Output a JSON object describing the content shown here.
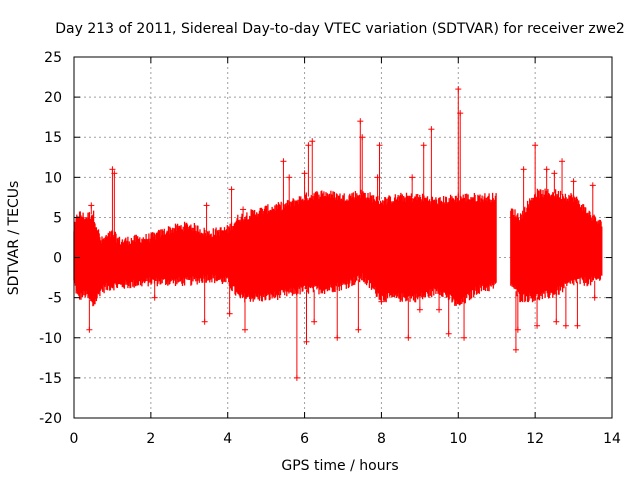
{
  "chart_data": {
    "type": "scatter",
    "title": "Day 213 of 2011, Sidereal Day-to-day VTEC variation (SDTVAR) for receiver zwe2",
    "xlabel": "GPS time / hours",
    "ylabel": "SDTVAR / TECUs",
    "xlim": [
      0,
      14
    ],
    "ylim": [
      -20,
      25
    ],
    "x_ticks": [
      0,
      2,
      4,
      6,
      8,
      10,
      12,
      14
    ],
    "y_ticks": [
      -20,
      -15,
      -10,
      -5,
      0,
      5,
      10,
      15,
      20,
      25
    ],
    "grid": true,
    "series": [
      {
        "name": "SDTVAR",
        "color": "#ff0000",
        "marker": "plus",
        "envelope": [
          {
            "x": 0.0,
            "low": -3.0,
            "high": 3.5
          },
          {
            "x": 0.1,
            "low": -5.0,
            "high": 5.5
          },
          {
            "x": 0.3,
            "low": -4.5,
            "high": 5.0
          },
          {
            "x": 0.5,
            "low": -6.0,
            "high": 5.5
          },
          {
            "x": 0.7,
            "low": -4.0,
            "high": 2.0
          },
          {
            "x": 1.0,
            "low": -3.5,
            "high": 3.0
          },
          {
            "x": 1.2,
            "low": -3.5,
            "high": 2.0
          },
          {
            "x": 2.0,
            "low": -3.0,
            "high": 2.5
          },
          {
            "x": 2.5,
            "low": -3.0,
            "high": 3.5
          },
          {
            "x": 3.0,
            "low": -3.0,
            "high": 4.0
          },
          {
            "x": 3.5,
            "low": -2.5,
            "high": 3.0
          },
          {
            "x": 4.0,
            "low": -3.0,
            "high": 3.5
          },
          {
            "x": 4.3,
            "low": -5.0,
            "high": 5.0
          },
          {
            "x": 5.0,
            "low": -5.0,
            "high": 6.0
          },
          {
            "x": 5.5,
            "low": -4.5,
            "high": 6.5
          },
          {
            "x": 6.0,
            "low": -4.0,
            "high": 7.5
          },
          {
            "x": 6.5,
            "low": -4.0,
            "high": 8.0
          },
          {
            "x": 7.0,
            "low": -3.5,
            "high": 7.5
          },
          {
            "x": 7.5,
            "low": -2.5,
            "high": 8.0
          },
          {
            "x": 8.0,
            "low": -5.0,
            "high": 7.0
          },
          {
            "x": 8.5,
            "low": -5.0,
            "high": 7.5
          },
          {
            "x": 9.0,
            "low": -5.0,
            "high": 7.5
          },
          {
            "x": 9.5,
            "low": -4.0,
            "high": 7.0
          },
          {
            "x": 10.0,
            "low": -6.0,
            "high": 7.5
          },
          {
            "x": 10.5,
            "low": -4.0,
            "high": 7.5
          },
          {
            "x": 11.0,
            "low": -3.5,
            "high": 7.5
          },
          {
            "x": 11.35,
            "low": -3.0,
            "high": 6.0
          },
          {
            "x": 11.6,
            "low": -5.0,
            "high": 5.0
          },
          {
            "x": 12.0,
            "low": -5.0,
            "high": 8.0
          },
          {
            "x": 12.5,
            "low": -4.5,
            "high": 8.0
          },
          {
            "x": 13.0,
            "low": -3.0,
            "high": 7.5
          },
          {
            "x": 13.5,
            "low": -3.0,
            "high": 5.0
          },
          {
            "x": 13.75,
            "low": -2.5,
            "high": 4.0
          }
        ],
        "gaps": [
          [
            11.0,
            11.35
          ]
        ],
        "outliers": [
          {
            "x": 0.4,
            "y": -9.0
          },
          {
            "x": 0.45,
            "y": 6.5
          },
          {
            "x": 1.0,
            "y": 11.0
          },
          {
            "x": 1.05,
            "y": 10.5
          },
          {
            "x": 2.1,
            "y": -5.0
          },
          {
            "x": 3.4,
            "y": -8.0
          },
          {
            "x": 3.45,
            "y": 6.5
          },
          {
            "x": 4.05,
            "y": -7.0
          },
          {
            "x": 4.1,
            "y": 8.5
          },
          {
            "x": 4.45,
            "y": -9.0
          },
          {
            "x": 4.4,
            "y": 6.0
          },
          {
            "x": 5.45,
            "y": 12.0
          },
          {
            "x": 5.6,
            "y": 10.0
          },
          {
            "x": 5.8,
            "y": -15.0
          },
          {
            "x": 6.0,
            "y": 10.5
          },
          {
            "x": 6.05,
            "y": -10.5
          },
          {
            "x": 6.1,
            "y": 14.0
          },
          {
            "x": 6.2,
            "y": 14.5
          },
          {
            "x": 6.25,
            "y": -8.0
          },
          {
            "x": 6.85,
            "y": -10.0
          },
          {
            "x": 7.4,
            "y": -9.0
          },
          {
            "x": 7.45,
            "y": 17.0
          },
          {
            "x": 7.5,
            "y": 15.0
          },
          {
            "x": 7.9,
            "y": 10.0
          },
          {
            "x": 7.95,
            "y": 14.0
          },
          {
            "x": 8.0,
            "y": -5.5
          },
          {
            "x": 8.7,
            "y": -10.0
          },
          {
            "x": 8.8,
            "y": 10.0
          },
          {
            "x": 9.0,
            "y": -6.5
          },
          {
            "x": 9.1,
            "y": 14.0
          },
          {
            "x": 9.3,
            "y": 16.0
          },
          {
            "x": 9.5,
            "y": -6.5
          },
          {
            "x": 9.75,
            "y": -9.5
          },
          {
            "x": 10.0,
            "y": 21.0
          },
          {
            "x": 10.05,
            "y": 18.0
          },
          {
            "x": 10.15,
            "y": -10.0
          },
          {
            "x": 11.5,
            "y": -11.5
          },
          {
            "x": 11.55,
            "y": -9.0
          },
          {
            "x": 11.7,
            "y": 11.0
          },
          {
            "x": 12.0,
            "y": 14.0
          },
          {
            "x": 12.05,
            "y": -8.5
          },
          {
            "x": 12.3,
            "y": 11.0
          },
          {
            "x": 12.5,
            "y": 10.5
          },
          {
            "x": 12.55,
            "y": -8.0
          },
          {
            "x": 12.7,
            "y": 12.0
          },
          {
            "x": 12.8,
            "y": -8.5
          },
          {
            "x": 13.0,
            "y": 9.5
          },
          {
            "x": 13.1,
            "y": -8.5
          },
          {
            "x": 13.5,
            "y": 9.0
          },
          {
            "x": 13.55,
            "y": -5.0
          }
        ]
      }
    ]
  }
}
